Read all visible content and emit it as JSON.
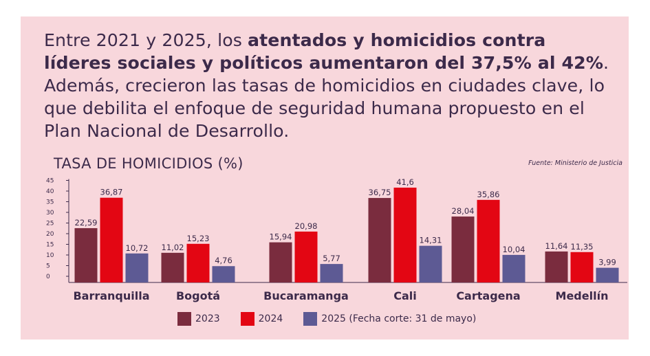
{
  "headline": {
    "part1": "Entre 2021 y 2025, los ",
    "bold": "atentados y homicidios contra líderes sociales y políticos aumentaron del 37,5% al 42%",
    "part2": ". Además, crecieron las tasas de homicidios en ciudades clave, lo que debilita el enfoque de seguridad humana propuesto en el Plan Nacional de Desarrollo."
  },
  "colors": {
    "background": "#f8d7dc",
    "text": "#3c2a4a",
    "s2023": "#7a2c3e",
    "s2024": "#e30613",
    "s2025": "#5d5a94"
  },
  "chart_data": {
    "type": "bar",
    "title": "TASA DE HOMICIDIOS (%)",
    "source": "Fuente: Ministerio de Justicia",
    "categories": [
      "Barranquilla",
      "Bogotá",
      "Bucaramanga",
      "Cali",
      "Cartagena",
      "Medellín"
    ],
    "series": [
      {
        "name": "2023",
        "values": [
          22.59,
          11.02,
          15.94,
          36.75,
          28.04,
          11.64
        ],
        "labels": [
          "22,59",
          "11,02",
          "15,94",
          "36,75",
          "28,04",
          "11,64"
        ]
      },
      {
        "name": "2024",
        "values": [
          36.87,
          15.23,
          20.98,
          41.6,
          35.86,
          11.35
        ],
        "labels": [
          "36,87",
          "15,23",
          "20,98",
          "41,6",
          "35,86",
          "11,35"
        ]
      },
      {
        "name": "2025 (Fecha corte: 31 de mayo)",
        "values": [
          10.72,
          4.76,
          5.77,
          14.31,
          10.04,
          3.99
        ],
        "labels": [
          "10,72",
          "4,76",
          "5,77",
          "14,31",
          "10,04",
          "3,99"
        ]
      }
    ],
    "yticks": [
      0,
      5,
      10,
      15,
      20,
      25,
      30,
      35,
      40,
      45
    ],
    "ylim": [
      0,
      45
    ],
    "xlabel": "",
    "ylabel": "",
    "legend_position": "bottom"
  }
}
